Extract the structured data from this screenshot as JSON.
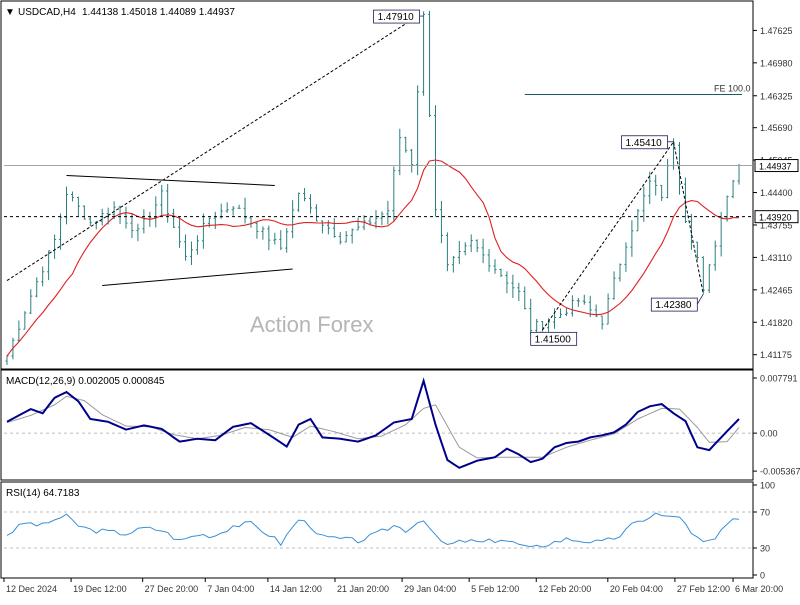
{
  "header": {
    "symbol": "USDCAD,H4",
    "ohlc": "1.44138 1.45018 1.44089 1.44937",
    "triangle_glyph": "▼"
  },
  "watermark": "Action Forex",
  "colors": {
    "candle": "#2a7f7f",
    "ma": "#e02020",
    "macd_main": "#00008b",
    "macd_signal": "#9a9a9a",
    "rsi": "#3a8fd6",
    "annotation": "#1e1e5a",
    "axis_text": "#333333",
    "current_price_bg": "#ffffff"
  },
  "chart_data": [
    {
      "type": "candlestick",
      "name": "price",
      "ylim": [
        1.4095,
        1.4815
      ],
      "y_ticks": [
        "1.47625",
        "1.46980",
        "1.46325",
        "1.45690",
        "1.45045",
        "1.44400",
        "1.43755",
        "1.43110",
        "1.42465",
        "1.41820",
        "1.41175"
      ],
      "current_price": "1.44937",
      "support_level": "1.43920",
      "support_value": 1.4392,
      "fe_level": {
        "label": "FE 100.0",
        "value": 1.4635
      },
      "annotations": [
        {
          "label": "1.47910",
          "x_index": 70,
          "value": 1.4791
        },
        {
          "label": "1.45410",
          "x_index": 112,
          "value": 1.4541
        },
        {
          "label": "1.42380",
          "x_index": 117,
          "value": 1.4238
        },
        {
          "label": "1.41500",
          "x_index": 89,
          "value": 1.415
        }
      ],
      "trend_lines": [
        {
          "style": "solid",
          "from": [
            10,
            1.4474
          ],
          "to": [
            45,
            1.4454
          ]
        },
        {
          "style": "solid",
          "from": [
            16,
            1.4255
          ],
          "to": [
            48,
            1.4288
          ]
        },
        {
          "style": "dashed",
          "from": [
            0,
            1.4265
          ],
          "to": [
            69,
            1.4791
          ]
        },
        {
          "style": "dashed",
          "from": [
            89,
            1.415
          ],
          "to": [
            112,
            1.4541
          ]
        },
        {
          "style": "dashed",
          "from": [
            112,
            1.4541
          ],
          "to": [
            117,
            1.4238
          ]
        }
      ],
      "key_closes": [
        [
          0,
          1.4115
        ],
        [
          4,
          1.4235
        ],
        [
          8,
          1.4345
        ],
        [
          10,
          1.444
        ],
        [
          14,
          1.438
        ],
        [
          18,
          1.441
        ],
        [
          22,
          1.436
        ],
        [
          26,
          1.4435
        ],
        [
          30,
          1.431
        ],
        [
          34,
          1.439
        ],
        [
          38,
          1.4415
        ],
        [
          42,
          1.437
        ],
        [
          46,
          1.433
        ],
        [
          49,
          1.444
        ],
        [
          52,
          1.439
        ],
        [
          56,
          1.435
        ],
        [
          60,
          1.4375
        ],
        [
          64,
          1.4405
        ],
        [
          66,
          1.455
        ],
        [
          68,
          1.45
        ],
        [
          70,
          1.479
        ],
        [
          72,
          1.441
        ],
        [
          74,
          1.429
        ],
        [
          78,
          1.434
        ],
        [
          82,
          1.429
        ],
        [
          86,
          1.424
        ],
        [
          88,
          1.417
        ],
        [
          92,
          1.419
        ],
        [
          96,
          1.4225
        ],
        [
          100,
          1.4185
        ],
        [
          104,
          1.434
        ],
        [
          108,
          1.446
        ],
        [
          110,
          1.4435
        ],
        [
          112,
          1.454
        ],
        [
          114,
          1.439
        ],
        [
          116,
          1.431
        ],
        [
          117,
          1.424
        ],
        [
          119,
          1.434
        ],
        [
          121,
          1.444
        ],
        [
          123,
          1.4494
        ]
      ]
    },
    {
      "type": "line",
      "name": "MACD",
      "label": "MACD(12,26,9) 0.002005 0.000845",
      "ylim": [
        -0.0062,
        0.0085
      ],
      "y_ticks": [
        "0.007791",
        "0.00",
        "-0.005367"
      ],
      "zero_line": 0,
      "series": [
        {
          "name": "macd",
          "points": [
            [
              0,
              0.0016
            ],
            [
              4,
              0.0034
            ],
            [
              6,
              0.0028
            ],
            [
              8,
              0.005
            ],
            [
              10,
              0.0058
            ],
            [
              12,
              0.0045
            ],
            [
              14,
              0.002
            ],
            [
              17,
              0.0016
            ],
            [
              20,
              0.0005
            ],
            [
              23,
              0.0011
            ],
            [
              26,
              0.0006
            ],
            [
              29,
              -0.0012
            ],
            [
              32,
              -0.0008
            ],
            [
              35,
              -0.001
            ],
            [
              38,
              0.0009
            ],
            [
              41,
              0.0014
            ],
            [
              44,
              -0.0002
            ],
            [
              47,
              -0.0019
            ],
            [
              49,
              0.0012
            ],
            [
              51,
              0.002
            ],
            [
              53,
              -0.0006
            ],
            [
              56,
              -0.0008
            ],
            [
              59,
              -0.0012
            ],
            [
              62,
              -0.0003
            ],
            [
              65,
              0.0015
            ],
            [
              68,
              0.002
            ],
            [
              70,
              0.0074
            ],
            [
              72,
              0.0012
            ],
            [
              74,
              -0.0038
            ],
            [
              76,
              -0.0049
            ],
            [
              79,
              -0.0039
            ],
            [
              82,
              -0.0034
            ],
            [
              84,
              -0.0022
            ],
            [
              86,
              -0.003
            ],
            [
              88,
              -0.0041
            ],
            [
              90,
              -0.0036
            ],
            [
              92,
              -0.002
            ],
            [
              94,
              -0.0014
            ],
            [
              96,
              -0.0012
            ],
            [
              98,
              -0.0006
            ],
            [
              100,
              -0.0003
            ],
            [
              102,
              0.0001
            ],
            [
              104,
              0.0012
            ],
            [
              106,
              0.003
            ],
            [
              108,
              0.0038
            ],
            [
              110,
              0.0041
            ],
            [
              112,
              0.0028
            ],
            [
              114,
              0.0017
            ],
            [
              116,
              -0.002
            ],
            [
              118,
              -0.0024
            ],
            [
              120,
              -0.0006
            ],
            [
              123,
              0.002
            ]
          ]
        },
        {
          "name": "signal",
          "points": [
            [
              0,
              0.0015
            ],
            [
              4,
              0.0025
            ],
            [
              8,
              0.004
            ],
            [
              10,
              0.0052
            ],
            [
              13,
              0.0046
            ],
            [
              16,
              0.0026
            ],
            [
              20,
              0.001
            ],
            [
              24,
              0.0009
            ],
            [
              28,
              -0.0002
            ],
            [
              32,
              -0.0008
            ],
            [
              36,
              -0.0003
            ],
            [
              40,
              0.0008
            ],
            [
              44,
              0.0005
            ],
            [
              48,
              -0.0006
            ],
            [
              51,
              0.001
            ],
            [
              55,
              0.0002
            ],
            [
              59,
              -0.0008
            ],
            [
              63,
              -0.0004
            ],
            [
              67,
              0.0012
            ],
            [
              70,
              0.0035
            ],
            [
              72,
              0.004
            ],
            [
              74,
              0.001
            ],
            [
              76,
              -0.002
            ],
            [
              79,
              -0.0035
            ],
            [
              83,
              -0.0034
            ],
            [
              87,
              -0.0034
            ],
            [
              90,
              -0.0034
            ],
            [
              94,
              -0.002
            ],
            [
              98,
              -0.001
            ],
            [
              102,
              -0.0001
            ],
            [
              106,
              0.002
            ],
            [
              110,
              0.0035
            ],
            [
              113,
              0.0034
            ],
            [
              116,
              0.0008
            ],
            [
              118,
              -0.0013
            ],
            [
              121,
              -0.0012
            ],
            [
              123,
              0.0008
            ]
          ]
        }
      ]
    },
    {
      "type": "line",
      "name": "RSI",
      "label": "RSI(14) 64.7183",
      "ylim": [
        0,
        100
      ],
      "y_ticks": [
        "100",
        "70",
        "30",
        "0"
      ],
      "levels": [
        70,
        30
      ],
      "series": [
        {
          "name": "rsi",
          "points": [
            [
              0,
              45
            ],
            [
              3,
              58
            ],
            [
              6,
              55
            ],
            [
              8,
              62
            ],
            [
              10,
              65
            ],
            [
              12,
              55
            ],
            [
              14,
              50
            ],
            [
              17,
              48
            ],
            [
              20,
              46
            ],
            [
              23,
              52
            ],
            [
              26,
              50
            ],
            [
              29,
              38
            ],
            [
              32,
              45
            ],
            [
              35,
              44
            ],
            [
              38,
              55
            ],
            [
              41,
              57
            ],
            [
              44,
              45
            ],
            [
              46,
              35
            ],
            [
              49,
              62
            ],
            [
              51,
              55
            ],
            [
              53,
              42
            ],
            [
              56,
              40
            ],
            [
              59,
              38
            ],
            [
              62,
              45
            ],
            [
              65,
              55
            ],
            [
              67,
              50
            ],
            [
              70,
              63
            ],
            [
              72,
              42
            ],
            [
              74,
              33
            ],
            [
              77,
              38
            ],
            [
              80,
              36
            ],
            [
              83,
              40
            ],
            [
              86,
              34
            ],
            [
              88,
              29
            ],
            [
              91,
              35
            ],
            [
              94,
              40
            ],
            [
              97,
              38
            ],
            [
              100,
              36
            ],
            [
              103,
              44
            ],
            [
              105,
              55
            ],
            [
              107,
              62
            ],
            [
              109,
              68
            ],
            [
              111,
              64
            ],
            [
              113,
              66
            ],
            [
              115,
              45
            ],
            [
              117,
              36
            ],
            [
              119,
              40
            ],
            [
              121,
              55
            ],
            [
              123,
              64.7
            ]
          ]
        }
      ]
    }
  ],
  "x_axis": {
    "labels": [
      {
        "text": "12 Dec 2024",
        "index": 0
      },
      {
        "text": "19 Dec 12:00",
        "index": 15
      },
      {
        "text": "27 Dec 20:00",
        "index": 31
      },
      {
        "text": "7 Jan 04:00",
        "index": 45
      },
      {
        "text": "14 Jan 12:00",
        "index": 59
      },
      {
        "text": "21 Jan 20:00",
        "index": 74
      },
      {
        "text": "29 Jan 04:00",
        "index": 89
      },
      {
        "text": "5 Feb 12:00",
        "index": 104
      },
      {
        "text": "12 Feb 20:00",
        "index": 119
      },
      {
        "text": "20 Feb 04:00",
        "index": 135
      },
      {
        "text": "27 Feb 12:00",
        "index": 150
      },
      {
        "text": "6 Mar 20:00",
        "index": 163
      }
    ],
    "total_bars": 124
  }
}
